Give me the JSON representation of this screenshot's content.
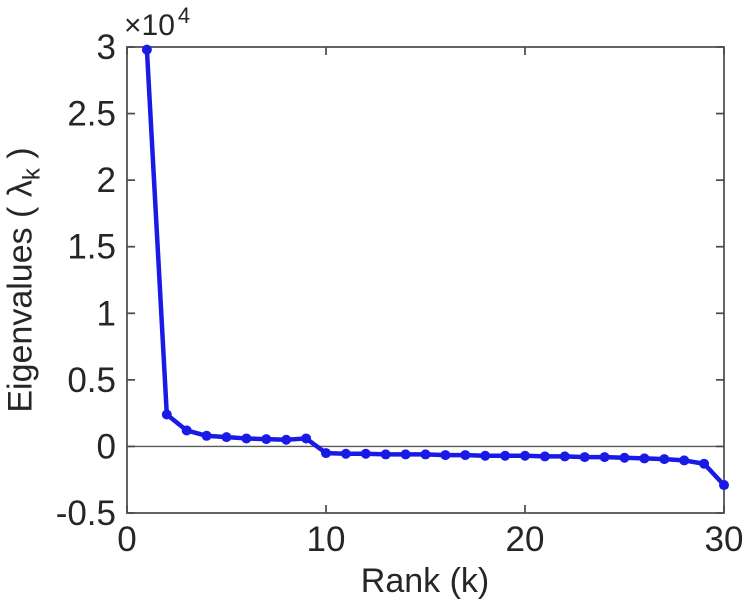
{
  "figure": {
    "background": "#ffffff",
    "axis_color": "#4a4a4a",
    "zero_line_color": "#5a5a5a",
    "text_color": "#262626"
  },
  "chart_data": {
    "type": "line",
    "title": "",
    "xlabel": "Rank (k)",
    "ylabel": "Eigenvalues ( λk )",
    "ylabel_parts": {
      "main": "Eigenvalues ( ",
      "symbol": "λ",
      "subscript": "k",
      "close": " )"
    },
    "y_multiplier": {
      "base": "×10",
      "exponent": "4"
    },
    "xlim": [
      0,
      30
    ],
    "ylim": [
      -0.5,
      3
    ],
    "xticks": [
      0,
      10,
      20,
      30
    ],
    "xtick_labels": [
      "0",
      "10",
      "20",
      "30"
    ],
    "yticks": [
      -0.5,
      0,
      0.5,
      1,
      1.5,
      2,
      2.5,
      3
    ],
    "ytick_labels": [
      "-0.5",
      "0",
      "0.5",
      "1",
      "1.5",
      "2",
      "2.5",
      "3"
    ],
    "grid": false,
    "box": true,
    "tick_direction": "in",
    "zero_line": true,
    "legend": null,
    "y_unit_multiplier": 10000,
    "series": [
      {
        "name": "eigenvalues",
        "color": "#1a1ae6",
        "marker": "circle",
        "x": [
          1,
          2,
          3,
          4,
          5,
          6,
          7,
          8,
          9,
          10,
          11,
          12,
          13,
          14,
          15,
          16,
          17,
          18,
          19,
          20,
          21,
          22,
          23,
          24,
          25,
          26,
          27,
          28,
          29,
          30
        ],
        "y": [
          2.98,
          0.24,
          0.12,
          0.08,
          0.07,
          0.06,
          0.055,
          0.05,
          0.06,
          -0.05,
          -0.055,
          -0.055,
          -0.06,
          -0.06,
          -0.06,
          -0.065,
          -0.065,
          -0.07,
          -0.07,
          -0.07,
          -0.075,
          -0.075,
          -0.08,
          -0.08,
          -0.085,
          -0.09,
          -0.095,
          -0.105,
          -0.13,
          -0.29
        ]
      }
    ]
  }
}
